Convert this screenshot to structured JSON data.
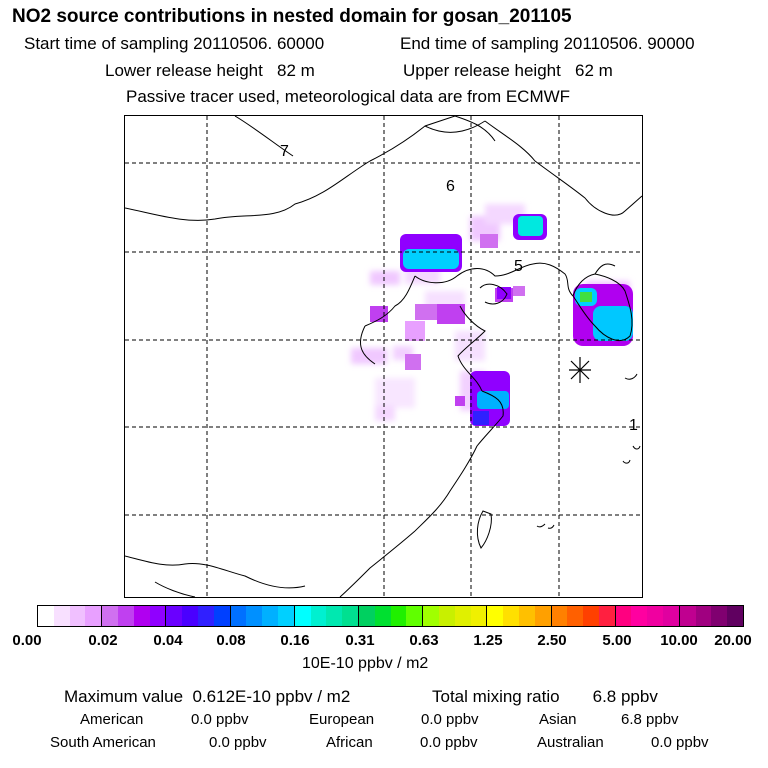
{
  "header": {
    "title": "NO2 source contributions in nested domain for gosan_201105",
    "start_label": "Start time of sampling 20110506. 60000",
    "end_label": "End time of sampling 20110506. 90000",
    "lower_label": "Lower release height   82 m",
    "upper_label": "Upper release height   62 m",
    "tracer_note": "Passive tracer used, meteorological data are from ECMWF"
  },
  "map": {
    "region_labels": [
      "7",
      "6",
      "5",
      "1"
    ],
    "receptor": "gosan"
  },
  "colorbar": {
    "ticks": [
      "0.00",
      "0.02",
      "0.04",
      "0.08",
      "0.16",
      "0.31",
      "0.63",
      "1.25",
      "2.50",
      "5.00",
      "10.00",
      "20.00"
    ],
    "colors": [
      "#ffffff",
      "#f8e0ff",
      "#f0c0ff",
      "#e8a0ff",
      "#d070f0",
      "#c040f0",
      "#b000f0",
      "#9000ff",
      "#6a00ff",
      "#4a00ff",
      "#3020ff",
      "#0040ff",
      "#0070ff",
      "#0090ff",
      "#00b0ff",
      "#00d0ff",
      "#00ffff",
      "#00f0d0",
      "#00e8b0",
      "#00e090",
      "#00d060",
      "#00e030",
      "#20f000",
      "#60ff00",
      "#a0ff00",
      "#c8f000",
      "#e0f000",
      "#f0f000",
      "#ffff00",
      "#ffe000",
      "#ffc000",
      "#ffa000",
      "#ff8000",
      "#ff6000",
      "#ff4000",
      "#ff2040",
      "#ff0080",
      "#ff00a0",
      "#f000a0",
      "#e000a0",
      "#c00090",
      "#a00080",
      "#800070",
      "#600060"
    ],
    "units": "10E-10 ppbv / m2"
  },
  "summary": {
    "max_value": "Maximum value  0.612E-10 ppbv / m2",
    "total_mixing": "Total mixing ratio       6.8 ppbv",
    "american_label": "American",
    "american_value": "0.0 ppbv",
    "european_label": "European",
    "european_value": "0.0 ppbv",
    "asian_label": "Asian",
    "asian_value": "6.8 ppbv",
    "south_american_label": "South American",
    "south_american_value": "0.0 ppbv",
    "african_label": "African",
    "african_value": "0.0 ppbv",
    "australian_label": "Australian",
    "australian_value": "0.0 ppbv"
  }
}
